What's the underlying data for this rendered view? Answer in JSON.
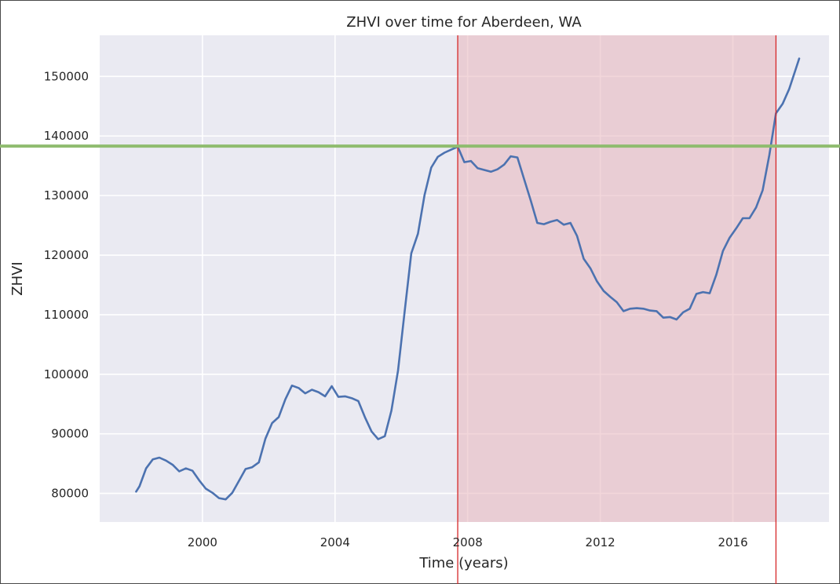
{
  "chart_data": {
    "type": "line",
    "title": "ZHVI over time for Aberdeen, WA",
    "xlabel": "Time (years)",
    "ylabel": "ZHVI",
    "xlim": [
      1996.9,
      2018.9
    ],
    "ylim": [
      75200,
      156900
    ],
    "xticks": [
      2000,
      2004,
      2008,
      2012,
      2016
    ],
    "yticks": [
      80000,
      90000,
      100000,
      110000,
      120000,
      130000,
      140000,
      150000
    ],
    "grid": true,
    "legend": "none",
    "colors": {
      "line": "#4c72b0",
      "background": "#eaeaf2",
      "grid": "#ffffff",
      "threshold": "#8fbc6f",
      "marker": "#d62728",
      "shade": "#e8b5bc"
    },
    "threshold_y": 138300,
    "shaded_x": [
      2007.7,
      2017.3
    ],
    "series": [
      {
        "x": [
          1998.0,
          1998.1,
          1998.3,
          1998.5,
          1998.7,
          1998.9,
          1999.1,
          1999.3,
          1999.5,
          1999.7,
          1999.9,
          2000.1,
          2000.3,
          2000.5,
          2000.7,
          2000.9,
          2001.1,
          2001.3,
          2001.5,
          2001.7,
          2001.9,
          2002.1,
          2002.3,
          2002.5,
          2002.7,
          2002.9,
          2003.1,
          2003.3,
          2003.5,
          2003.7,
          2003.9,
          2004.1,
          2004.3,
          2004.5,
          2004.7,
          2004.9,
          2005.1,
          2005.3,
          2005.5,
          2005.7,
          2005.9,
          2006.1,
          2006.3,
          2006.5,
          2006.7,
          2006.9,
          2007.1,
          2007.3,
          2007.5,
          2007.7,
          2007.9,
          2008.1,
          2008.3,
          2008.5,
          2008.7,
          2008.9,
          2009.1,
          2009.3,
          2009.5,
          2009.7,
          2009.9,
          2010.1,
          2010.3,
          2010.5,
          2010.7,
          2010.9,
          2011.1,
          2011.3,
          2011.5,
          2011.7,
          2011.9,
          2012.1,
          2012.3,
          2012.5,
          2012.7,
          2012.9,
          2013.1,
          2013.3,
          2013.5,
          2013.7,
          2013.9,
          2014.1,
          2014.3,
          2014.5,
          2014.7,
          2014.9,
          2015.1,
          2015.3,
          2015.5,
          2015.7,
          2015.9,
          2016.1,
          2016.3,
          2016.5,
          2016.7,
          2016.9,
          2017.1,
          2017.3,
          2017.5,
          2017.7,
          2017.9,
          2018.0
        ],
        "y": [
          80300,
          81200,
          84200,
          85700,
          86000,
          85500,
          84800,
          83700,
          84200,
          83800,
          82200,
          80800,
          80100,
          79200,
          79000,
          80100,
          82100,
          84100,
          84400,
          85200,
          89200,
          91800,
          92800,
          95800,
          98100,
          97700,
          96800,
          97400,
          97000,
          96300,
          98000,
          96200,
          96300,
          96000,
          95500,
          92800,
          90400,
          89100,
          89600,
          93900,
          100600,
          110600,
          120300,
          123600,
          130100,
          134700,
          136500,
          137200,
          137700,
          138200,
          135600,
          135800,
          134600,
          134300,
          134000,
          134400,
          135200,
          136600,
          136400,
          132800,
          129200,
          125400,
          125200,
          125600,
          125900,
          125100,
          125400,
          123200,
          119400,
          117800,
          115600,
          114000,
          113000,
          112100,
          110600,
          111000,
          111100,
          111000,
          110700,
          110600,
          109500,
          109600,
          109200,
          110400,
          111000,
          113500,
          113800,
          113600,
          116700,
          120700,
          122900,
          124500,
          126200,
          126200,
          128000,
          130900,
          136800,
          143800,
          145400,
          147900,
          151300,
          153000
        ]
      }
    ]
  }
}
